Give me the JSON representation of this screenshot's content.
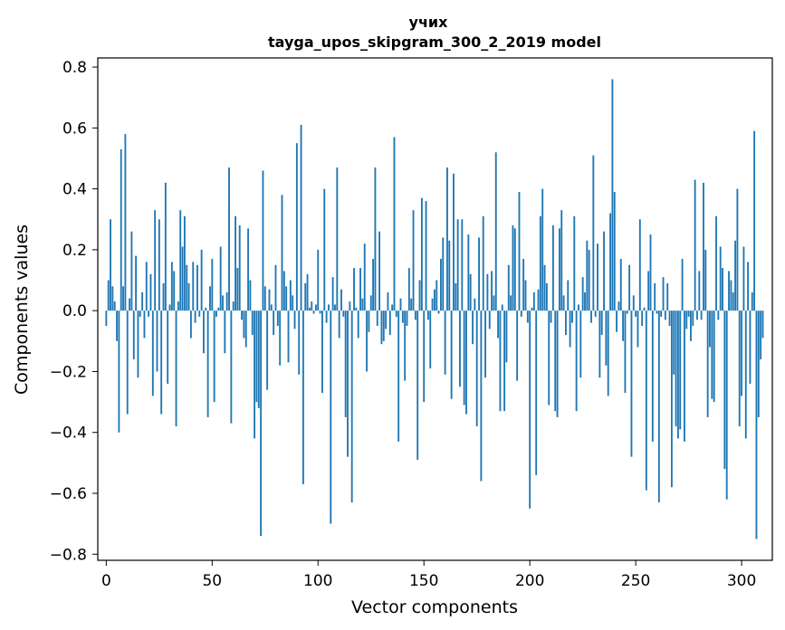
{
  "chart_data": {
    "type": "bar",
    "title": "учих",
    "subtitle": "tayga_upos_skipgram_300_2_2019 model",
    "xlabel": "Vector components",
    "ylabel": "Components values",
    "xlim": [
      -4,
      314.5
    ],
    "ylim": [
      -0.82,
      0.83
    ],
    "xticks": [
      0,
      50,
      100,
      150,
      200,
      250,
      300
    ],
    "yticks": [
      -0.8,
      -0.6,
      -0.4,
      -0.2,
      0.0,
      0.2,
      0.4,
      0.6,
      0.8
    ],
    "ytick_labels": [
      "−0.8",
      "−0.6",
      "−0.4",
      "−0.2",
      "0.0",
      "0.2",
      "0.4",
      "0.6",
      "0.8"
    ],
    "grid": false,
    "bar_color": "#1f77b4",
    "values": [
      -0.05,
      0.1,
      0.3,
      0.08,
      0.03,
      -0.1,
      -0.4,
      0.53,
      0.08,
      0.58,
      -0.34,
      0.04,
      0.26,
      -0.16,
      0.18,
      -0.22,
      -0.02,
      0.06,
      -0.09,
      0.16,
      -0.02,
      0.12,
      -0.28,
      0.33,
      -0.2,
      0.3,
      -0.34,
      0.09,
      0.42,
      -0.24,
      0.02,
      0.16,
      0.13,
      -0.38,
      0.03,
      0.33,
      0.21,
      0.31,
      0.15,
      0.09,
      -0.09,
      0.16,
      -0.04,
      0.15,
      -0.02,
      0.2,
      -0.14,
      0.01,
      -0.35,
      0.08,
      0.17,
      -0.3,
      -0.02,
      0.01,
      0.21,
      0.05,
      -0.14,
      0.06,
      0.47,
      -0.37,
      0.03,
      0.31,
      0.14,
      0.28,
      -0.03,
      -0.09,
      -0.12,
      0.27,
      0.1,
      -0.08,
      -0.42,
      -0.3,
      -0.32,
      -0.74,
      0.46,
      0.08,
      -0.26,
      0.07,
      0.02,
      -0.08,
      0.15,
      -0.05,
      -0.18,
      0.38,
      0.13,
      0.08,
      -0.17,
      0.1,
      0.05,
      -0.06,
      0.55,
      -0.21,
      0.61,
      -0.57,
      0.09,
      0.12,
      0.01,
      0.03,
      -0.01,
      0.02,
      0.2,
      -0.01,
      -0.27,
      0.4,
      -0.04,
      0.02,
      -0.7,
      0.11,
      0.02,
      0.47,
      -0.09,
      0.07,
      -0.02,
      -0.35,
      -0.48,
      0.03,
      -0.63,
      0.14,
      0.01,
      -0.09,
      0.14,
      0.04,
      0.22,
      -0.2,
      -0.07,
      0.05,
      0.17,
      0.47,
      -0.05,
      0.26,
      -0.11,
      -0.1,
      -0.06,
      0.06,
      -0.08,
      0.02,
      0.57,
      -0.02,
      -0.43,
      0.04,
      -0.04,
      -0.23,
      -0.05,
      0.14,
      0.04,
      0.33,
      -0.03,
      -0.49,
      0.1,
      0.37,
      -0.3,
      0.36,
      -0.03,
      -0.19,
      0.04,
      0.07,
      0.1,
      -0.01,
      0.17,
      0.24,
      -0.21,
      0.47,
      0.23,
      -0.29,
      0.45,
      0.09,
      0.3,
      -0.25,
      0.3,
      -0.31,
      -0.34,
      0.25,
      0.12,
      -0.11,
      0.04,
      -0.38,
      0.24,
      -0.56,
      0.31,
      -0.22,
      0.12,
      -0.06,
      0.13,
      0.05,
      0.52,
      -0.09,
      -0.33,
      0.02,
      -0.33,
      -0.17,
      0.15,
      0.05,
      0.28,
      0.27,
      -0.23,
      0.39,
      -0.02,
      0.17,
      0.1,
      -0.04,
      -0.65,
      0.01,
      0.06,
      -0.54,
      0.07,
      0.31,
      0.4,
      0.15,
      0.09,
      -0.31,
      -0.04,
      0.28,
      -0.33,
      -0.35,
      0.27,
      0.33,
      0.05,
      -0.08,
      0.1,
      -0.12,
      -0.04,
      0.31,
      -0.33,
      0.02,
      -0.22,
      0.11,
      0.06,
      0.23,
      0.2,
      -0.04,
      0.51,
      -0.02,
      0.22,
      -0.22,
      -0.08,
      0.26,
      -0.18,
      -0.28,
      0.32,
      0.76,
      0.39,
      -0.07,
      0.03,
      0.17,
      -0.1,
      -0.27,
      -0.01,
      0.15,
      -0.48,
      0.05,
      -0.02,
      -0.12,
      0.3,
      -0.05,
      0.01,
      -0.59,
      0.13,
      0.25,
      -0.43,
      0.09,
      -0.01,
      -0.63,
      -0.02,
      0.11,
      -0.03,
      0.09,
      -0.05,
      -0.58,
      -0.21,
      -0.38,
      -0.42,
      -0.39,
      0.17,
      -0.43,
      -0.06,
      -0.02,
      -0.1,
      -0.05,
      0.43,
      -0.03,
      0.13,
      -0.03,
      0.42,
      0.2,
      -0.35,
      -0.12,
      -0.29,
      -0.3,
      0.31,
      -0.03,
      0.21,
      0.14,
      -0.52,
      -0.62,
      0.13,
      0.1,
      0.06,
      0.23,
      0.4,
      -0.38,
      -0.28,
      0.21,
      -0.42,
      0.16,
      -0.24,
      0.06,
      0.59,
      -0.75,
      -0.35,
      -0.16,
      -0.09
    ]
  }
}
